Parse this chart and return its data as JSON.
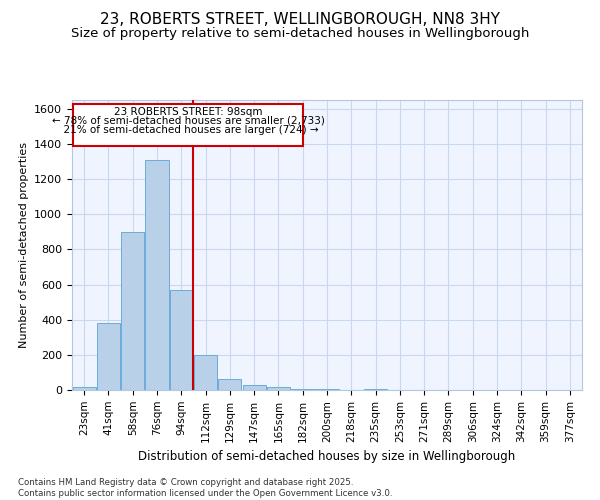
{
  "title": "23, ROBERTS STREET, WELLINGBOROUGH, NN8 3HY",
  "subtitle": "Size of property relative to semi-detached houses in Wellingborough",
  "xlabel": "Distribution of semi-detached houses by size in Wellingborough",
  "ylabel": "Number of semi-detached properties",
  "categories": [
    "23sqm",
    "41sqm",
    "58sqm",
    "76sqm",
    "94sqm",
    "112sqm",
    "129sqm",
    "147sqm",
    "165sqm",
    "182sqm",
    "200sqm",
    "218sqm",
    "235sqm",
    "253sqm",
    "271sqm",
    "289sqm",
    "306sqm",
    "324sqm",
    "342sqm",
    "359sqm",
    "377sqm"
  ],
  "values": [
    18,
    380,
    900,
    1310,
    570,
    200,
    65,
    30,
    15,
    5,
    5,
    0,
    5,
    0,
    0,
    0,
    0,
    0,
    0,
    0,
    0
  ],
  "bar_color": "#b8d0e8",
  "bar_edge_color": "#6aacdc",
  "highlight_line_index": 4,
  "highlight_label": "23 ROBERTS STREET: 98sqm",
  "pct_smaller": "78% of semi-detached houses are smaller (2,733)",
  "pct_larger": "21% of semi-detached houses are larger (724)",
  "annotation_box_color": "#cc0000",
  "bg_color": "#ffffff",
  "plot_bg_color": "#f0f4ff",
  "grid_color": "#c8d8ee",
  "footnote1": "Contains HM Land Registry data © Crown copyright and database right 2025.",
  "footnote2": "Contains public sector information licensed under the Open Government Licence v3.0.",
  "ylim": [
    0,
    1650
  ],
  "title_fontsize": 11,
  "subtitle_fontsize": 9.5
}
